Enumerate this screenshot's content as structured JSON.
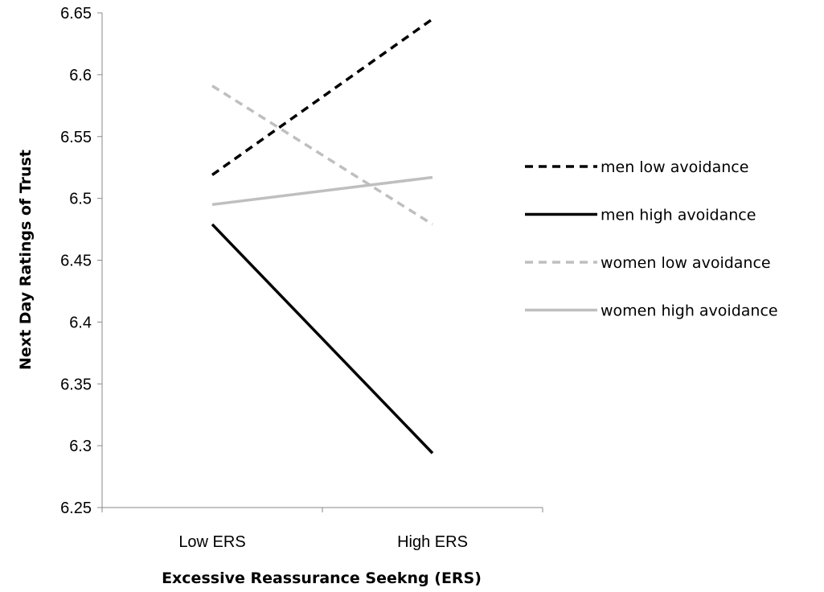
{
  "chart_data": {
    "type": "line",
    "title": "",
    "xlabel": "Excessive Reassurance Seekng (ERS)",
    "ylabel": "Next Day Ratings of Trust",
    "categories": [
      "Low ERS",
      "High ERS"
    ],
    "ylim": [
      6.25,
      6.65
    ],
    "yticks": [
      "6.25",
      "6.3",
      "6.35",
      "6.4",
      "6.45",
      "6.5",
      "6.55",
      "6.6",
      "6.65"
    ],
    "grid": false,
    "legend_position": "right",
    "series": [
      {
        "name": "men low avoidance",
        "values": [
          6.519,
          6.645
        ],
        "color": "#000000",
        "dash": "dashed"
      },
      {
        "name": "men high avoidance",
        "values": [
          6.479,
          6.294
        ],
        "color": "#000000",
        "dash": "solid"
      },
      {
        "name": "women low avoidance",
        "values": [
          6.591,
          6.479
        ],
        "color": "#bfbfbf",
        "dash": "dashed"
      },
      {
        "name": "women high avoidance",
        "values": [
          6.495,
          6.517
        ],
        "color": "#bfbfbf",
        "dash": "solid"
      }
    ]
  }
}
